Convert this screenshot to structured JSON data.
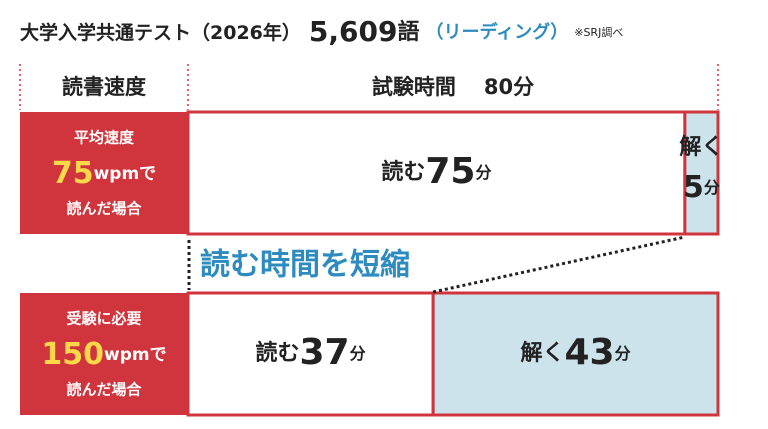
{
  "header": {
    "title": "大学入学共通テスト（2026年）",
    "word_count": "5,609",
    "word_unit": "語",
    "section": "（リーディング）",
    "source": "※SRJ調べ"
  },
  "columns": {
    "speed": "読書速度",
    "time_label": "試験時間",
    "time_value": 80,
    "time_unit": "分"
  },
  "banner": "読む時間を短縮",
  "rows": [
    {
      "label_top": "平均速度",
      "wpm": 75,
      "wpm_suffix": "wpmで",
      "label_bottom": "読んだ場合",
      "segments": [
        {
          "verb": "読む",
          "minutes": 75,
          "unit": "分"
        },
        {
          "verb": "解く",
          "minutes": 5,
          "unit": "分"
        }
      ]
    },
    {
      "label_top": "受験に必要",
      "wpm": 150,
      "wpm_suffix": "wpmで",
      "label_bottom": "読んだ場合",
      "segments": [
        {
          "verb": "読む",
          "minutes": 37,
          "unit": "分"
        },
        {
          "verb": "解く",
          "minutes": 43,
          "unit": "分"
        }
      ]
    }
  ]
}
